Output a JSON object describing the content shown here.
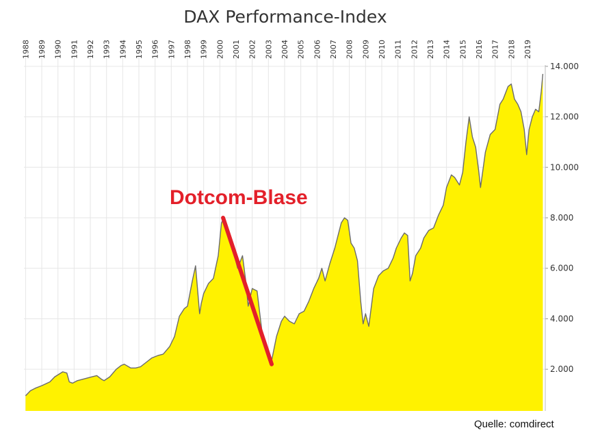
{
  "chart_data": {
    "type": "area",
    "title": "DAX Performance-Index",
    "source": "Quelle: comdirect",
    "annotation": {
      "text": "Dotcom-Blase",
      "color": "#e3202a",
      "from": {
        "x": 2000.2,
        "y": 8000
      },
      "to": {
        "x": 2003.2,
        "y": 2200
      }
    },
    "fill_color": "#fff200",
    "line_color": "#6b6b6b",
    "years": [
      "1988",
      "1989",
      "1990",
      "1991",
      "1992",
      "1993",
      "1994",
      "1995",
      "1996",
      "1997",
      "1998",
      "1999",
      "2000",
      "2001",
      "2002",
      "2003",
      "2004",
      "2005",
      "2006",
      "2007",
      "2008",
      "2009",
      "2010",
      "2011",
      "2012",
      "2013",
      "2014",
      "2015",
      "2016",
      "2017",
      "2018",
      "2019"
    ],
    "yticks": [
      {
        "value": 2000,
        "label": "2.000"
      },
      {
        "value": 4000,
        "label": "4.000"
      },
      {
        "value": 6000,
        "label": "6.000"
      },
      {
        "value": 8000,
        "label": "8.000"
      },
      {
        "value": 10000,
        "label": "10.000"
      },
      {
        "value": 12000,
        "label": "12.000"
      },
      {
        "value": 14000,
        "label": "14.000"
      }
    ],
    "xlim": [
      1987.9,
      2020.1
    ],
    "ylim": [
      350,
      14050
    ],
    "grid": true,
    "series": [
      {
        "x": [
          1988.0,
          1988.3,
          1988.6,
          1989.0,
          1989.5,
          1989.8,
          1990.3,
          1990.55,
          1990.7,
          1990.9,
          1991.2,
          1991.5,
          1991.8,
          1992.1,
          1992.4,
          1992.7,
          1992.85,
          1993.2,
          1993.6,
          1993.9,
          1994.1,
          1994.5,
          1994.8,
          1995.1,
          1995.5,
          1995.8,
          1996.2,
          1996.5,
          1996.9,
          1997.2,
          1997.5,
          1997.8,
          1998.0,
          1998.3,
          1998.5,
          1998.75,
          1998.85,
          1999.0,
          1999.3,
          1999.6,
          1999.9,
          2000.1,
          2000.25,
          2000.4,
          2000.7,
          2000.9,
          2001.1,
          2001.4,
          2001.6,
          2001.75,
          2002.0,
          2002.3,
          2002.6,
          2002.8,
          2003.0,
          2003.2,
          2003.5,
          2003.8,
          2004.0,
          2004.3,
          2004.6,
          2004.9,
          2005.2,
          2005.5,
          2005.8,
          2006.1,
          2006.3,
          2006.5,
          2006.8,
          2007.1,
          2007.3,
          2007.5,
          2007.7,
          2007.9,
          2008.1,
          2008.3,
          2008.5,
          2008.7,
          2008.85,
          2009.0,
          2009.2,
          2009.5,
          2009.8,
          2010.1,
          2010.4,
          2010.7,
          2010.9,
          2011.2,
          2011.4,
          2011.6,
          2011.75,
          2011.9,
          2012.1,
          2012.4,
          2012.6,
          2012.9,
          2013.2,
          2013.5,
          2013.8,
          2014.0,
          2014.3,
          2014.5,
          2014.8,
          2015.0,
          2015.2,
          2015.4,
          2015.6,
          2015.8,
          2016.0,
          2016.1,
          2016.4,
          2016.7,
          2017.0,
          2017.3,
          2017.5,
          2017.8,
          2018.0,
          2018.2,
          2018.4,
          2018.6,
          2018.8,
          2018.95,
          2019.1,
          2019.3,
          2019.5,
          2019.7,
          2019.85,
          2019.95
        ],
        "y": [
          950,
          1150,
          1250,
          1350,
          1500,
          1700,
          1900,
          1850,
          1500,
          1450,
          1550,
          1600,
          1650,
          1700,
          1750,
          1600,
          1550,
          1700,
          2000,
          2150,
          2200,
          2050,
          2050,
          2100,
          2300,
          2450,
          2550,
          2600,
          2900,
          3300,
          4100,
          4400,
          4500,
          5500,
          6100,
          4200,
          4600,
          5000,
          5400,
          5600,
          6500,
          7800,
          8000,
          7600,
          7100,
          6500,
          6000,
          6500,
          5500,
          4500,
          5200,
          5100,
          3500,
          3000,
          2400,
          2350,
          3300,
          3900,
          4100,
          3900,
          3800,
          4200,
          4300,
          4700,
          5200,
          5600,
          6000,
          5500,
          6200,
          6800,
          7300,
          7800,
          8000,
          7900,
          7000,
          6800,
          6300,
          4700,
          3800,
          4200,
          3700,
          5200,
          5700,
          5900,
          6000,
          6400,
          6800,
          7200,
          7400,
          7300,
          5500,
          5800,
          6500,
          6800,
          7200,
          7500,
          7600,
          8100,
          8500,
          9200,
          9700,
          9600,
          9300,
          9800,
          11000,
          12000,
          11200,
          10800,
          9800,
          9200,
          10600,
          11300,
          11500,
          12500,
          12700,
          13200,
          13300,
          12700,
          12500,
          12200,
          11500,
          10500,
          11500,
          12000,
          12300,
          12200,
          13000,
          13700
        ]
      }
    ]
  }
}
